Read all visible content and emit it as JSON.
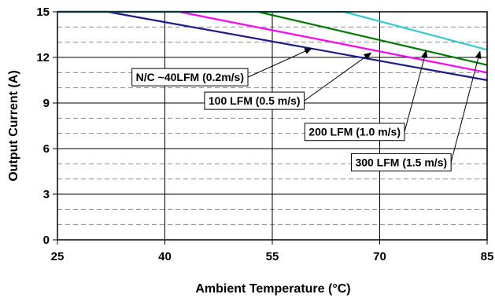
{
  "chart_data": {
    "type": "line",
    "title": "",
    "xlabel": "Ambient Temperature (°C)",
    "ylabel": "Output Current (A)",
    "xlim": [
      25,
      85
    ],
    "ylim": [
      0,
      15
    ],
    "x_ticks": [
      25,
      40,
      55,
      70,
      85
    ],
    "y_ticks": [
      0,
      3,
      6,
      9,
      12,
      15
    ],
    "y_minor_step": 1,
    "grid": {
      "vertical_major": true,
      "horizontal_major": true,
      "horizontal_minor_dashed": true
    },
    "legend": "none",
    "series": [
      {
        "name": "N/C ~40LFM (0.2m/s)",
        "color": "#1c1c8c",
        "points": [
          [
            25,
            15
          ],
          [
            32,
            15
          ],
          [
            85,
            10.5
          ]
        ]
      },
      {
        "name": "100 LFM (0.5 m/s)",
        "color": "#ff00ff",
        "points": [
          [
            25,
            15
          ],
          [
            42,
            15
          ],
          [
            85,
            11.0
          ]
        ]
      },
      {
        "name": "200 LFM (1.0 m/s)",
        "color": "#007a00",
        "points": [
          [
            25,
            15
          ],
          [
            53,
            15
          ],
          [
            85,
            11.5
          ]
        ]
      },
      {
        "name": "300 LFM (1.5 m/s)",
        "color": "#33cccc",
        "points": [
          [
            25,
            15
          ],
          [
            65,
            15
          ],
          [
            85,
            12.5
          ]
        ]
      }
    ],
    "annotations": [
      {
        "text": "N/C ~40LFM (0.2m/s)",
        "box_at": [
          43.5,
          10.7
        ],
        "arrow_to": [
          60.5,
          12.6
        ]
      },
      {
        "text": "100 LFM (0.5 m/s)",
        "box_at": [
          52.5,
          9.15
        ],
        "arrow_to": [
          68.8,
          12.3
        ]
      },
      {
        "text": "200 LFM (1.0 m/s)",
        "box_at": [
          66.5,
          7.1
        ],
        "arrow_to": [
          76.5,
          12.45
        ]
      },
      {
        "text": "300 LFM (1.5 m/s)",
        "box_at": [
          73.0,
          5.1
        ],
        "arrow_to": [
          84.0,
          12.4
        ]
      }
    ]
  }
}
